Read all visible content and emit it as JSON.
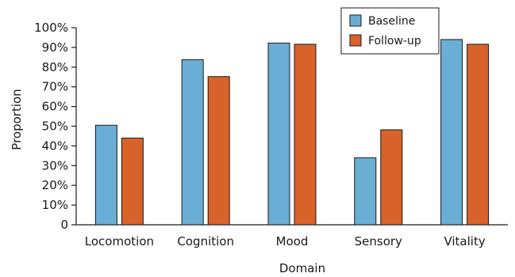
{
  "chart_data": {
    "type": "bar",
    "categories": [
      "Locomotion",
      "Cognition",
      "Mood",
      "Sensory",
      "Vitality"
    ],
    "series": [
      {
        "name": "Baseline",
        "color": "#6aaed6",
        "values": [
          50.5,
          83.8,
          92.2,
          34.0,
          94.0
        ]
      },
      {
        "name": "Follow-up",
        "color": "#d8622a",
        "values": [
          44.0,
          75.2,
          91.6,
          48.2,
          91.6
        ]
      }
    ],
    "xlabel": "Domain",
    "ylabel": "Proportion",
    "ylim": [
      0,
      100
    ],
    "yticks": [
      0,
      10,
      20,
      30,
      40,
      50,
      60,
      70,
      80,
      90,
      100
    ],
    "ytick_labels": [
      "0",
      "10%",
      "20%",
      "30%",
      "40%",
      "50%",
      "60%",
      "70%",
      "80%",
      "90%",
      "100%"
    ],
    "grid": false,
    "legend_position": "top-right"
  }
}
